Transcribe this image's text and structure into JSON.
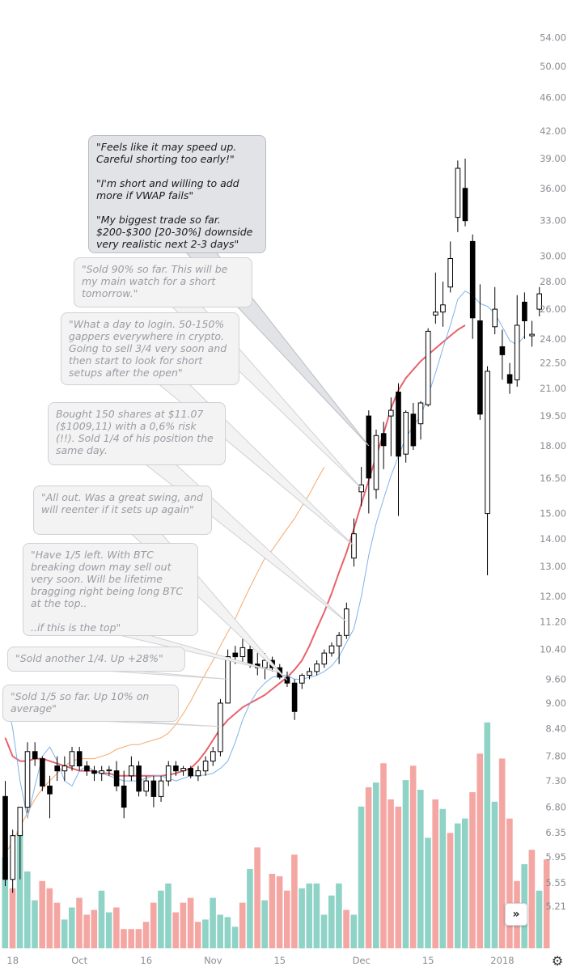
{
  "chart_data": {
    "type": "candlestick",
    "y_scale": "log",
    "ylim": [
      4.9,
      56.0
    ],
    "price_ticks": [
      "54.00",
      "50.00",
      "46.00",
      "42.00",
      "39.00",
      "36.00",
      "33.00",
      "30.00",
      "28.00",
      "26.00",
      "24.00",
      "22.50",
      "21.00",
      "19.50",
      "18.00",
      "16.50",
      "15.00",
      "14.00",
      "13.00",
      "12.00",
      "11.20",
      "10.40",
      "9.60",
      "9.00",
      "8.40",
      "7.80",
      "7.30",
      "6.80",
      "6.35",
      "5.95",
      "5.55",
      "5.21"
    ],
    "x_ticks": [
      {
        "label": "18",
        "index": 1
      },
      {
        "label": "Oct",
        "index": 10
      },
      {
        "label": "16",
        "index": 19
      },
      {
        "label": "Nov",
        "index": 28
      },
      {
        "label": "15",
        "index": 37
      },
      {
        "label": "Dec",
        "index": 48
      },
      {
        "label": "15",
        "index": 57
      },
      {
        "label": "2018",
        "index": 67
      }
    ],
    "candles": [
      {
        "o": 7.0,
        "h": 7.3,
        "l": 5.5,
        "c": 5.6
      },
      {
        "o": 5.6,
        "h": 6.4,
        "l": 5.4,
        "c": 6.3
      },
      {
        "o": 6.3,
        "h": 6.8,
        "l": 5.6,
        "c": 6.8
      },
      {
        "o": 6.8,
        "h": 8.1,
        "l": 6.7,
        "c": 7.9
      },
      {
        "o": 7.9,
        "h": 8.1,
        "l": 7.6,
        "c": 7.75
      },
      {
        "o": 7.75,
        "h": 7.8,
        "l": 7.1,
        "c": 7.2
      },
      {
        "o": 7.2,
        "h": 7.4,
        "l": 6.6,
        "c": 7.05
      },
      {
        "o": 7.6,
        "h": 7.8,
        "l": 7.3,
        "c": 7.5
      },
      {
        "o": 7.5,
        "h": 7.8,
        "l": 7.3,
        "c": 7.6
      },
      {
        "o": 7.6,
        "h": 8.0,
        "l": 7.5,
        "c": 7.9
      },
      {
        "o": 7.9,
        "h": 8.0,
        "l": 7.5,
        "c": 7.6
      },
      {
        "o": 7.6,
        "h": 7.7,
        "l": 7.4,
        "c": 7.5
      },
      {
        "o": 7.5,
        "h": 7.6,
        "l": 7.3,
        "c": 7.45
      },
      {
        "o": 7.45,
        "h": 7.6,
        "l": 7.3,
        "c": 7.5
      },
      {
        "o": 7.5,
        "h": 7.6,
        "l": 7.4,
        "c": 7.52
      },
      {
        "o": 7.5,
        "h": 7.7,
        "l": 7.1,
        "c": 7.2
      },
      {
        "o": 7.2,
        "h": 7.5,
        "l": 6.6,
        "c": 6.8
      },
      {
        "o": 7.4,
        "h": 7.8,
        "l": 7.3,
        "c": 7.6
      },
      {
        "o": 7.6,
        "h": 7.7,
        "l": 7.0,
        "c": 7.1
      },
      {
        "o": 7.1,
        "h": 7.4,
        "l": 7.0,
        "c": 7.3
      },
      {
        "o": 7.3,
        "h": 7.4,
        "l": 6.8,
        "c": 7.0
      },
      {
        "o": 7.0,
        "h": 7.4,
        "l": 6.9,
        "c": 7.3
      },
      {
        "o": 7.3,
        "h": 7.7,
        "l": 7.2,
        "c": 7.6
      },
      {
        "o": 7.6,
        "h": 7.7,
        "l": 7.4,
        "c": 7.5
      },
      {
        "o": 7.5,
        "h": 7.6,
        "l": 7.4,
        "c": 7.55
      },
      {
        "o": 7.55,
        "h": 7.6,
        "l": 7.35,
        "c": 7.4
      },
      {
        "o": 7.4,
        "h": 7.6,
        "l": 7.3,
        "c": 7.5
      },
      {
        "o": 7.5,
        "h": 7.8,
        "l": 7.4,
        "c": 7.7
      },
      {
        "o": 7.7,
        "h": 8.0,
        "l": 7.6,
        "c": 7.9
      },
      {
        "o": 7.9,
        "h": 9.1,
        "l": 7.8,
        "c": 9.0
      },
      {
        "o": 9.0,
        "h": 10.4,
        "l": 9.0,
        "c": 10.2
      },
      {
        "o": 10.3,
        "h": 10.5,
        "l": 10.0,
        "c": 10.2
      },
      {
        "o": 10.2,
        "h": 10.7,
        "l": 10.0,
        "c": 10.45
      },
      {
        "o": 10.4,
        "h": 10.6,
        "l": 9.9,
        "c": 10.0
      },
      {
        "o": 10.0,
        "h": 10.3,
        "l": 9.7,
        "c": 9.9
      },
      {
        "o": 9.9,
        "h": 10.3,
        "l": 9.6,
        "c": 10.1
      },
      {
        "o": 10.1,
        "h": 10.2,
        "l": 9.8,
        "c": 9.9
      },
      {
        "o": 9.9,
        "h": 10.0,
        "l": 9.6,
        "c": 9.65
      },
      {
        "o": 9.65,
        "h": 9.8,
        "l": 9.4,
        "c": 9.5
      },
      {
        "o": 9.5,
        "h": 9.6,
        "l": 8.6,
        "c": 8.8
      },
      {
        "o": 9.5,
        "h": 9.75,
        "l": 9.35,
        "c": 9.7
      },
      {
        "o": 9.7,
        "h": 9.9,
        "l": 9.6,
        "c": 9.8
      },
      {
        "o": 9.8,
        "h": 10.1,
        "l": 9.7,
        "c": 10.0
      },
      {
        "o": 10.0,
        "h": 10.4,
        "l": 9.9,
        "c": 10.3
      },
      {
        "o": 10.3,
        "h": 10.6,
        "l": 10.2,
        "c": 10.5
      },
      {
        "o": 10.5,
        "h": 10.9,
        "l": 10.0,
        "c": 10.8
      },
      {
        "o": 10.8,
        "h": 11.8,
        "l": 10.7,
        "c": 11.6
      },
      {
        "o": 13.3,
        "h": 14.8,
        "l": 13.0,
        "c": 14.2
      },
      {
        "o": 15.9,
        "h": 17.0,
        "l": 15.3,
        "c": 16.2
      },
      {
        "o": 19.5,
        "h": 19.8,
        "l": 15.0,
        "c": 16.5
      },
      {
        "o": 16.0,
        "h": 18.8,
        "l": 15.6,
        "c": 18.5
      },
      {
        "o": 18.6,
        "h": 19.2,
        "l": 16.9,
        "c": 18.0
      },
      {
        "o": 19.5,
        "h": 20.5,
        "l": 17.5,
        "c": 19.8
      },
      {
        "o": 20.8,
        "h": 21.3,
        "l": 14.9,
        "c": 17.5
      },
      {
        "o": 17.6,
        "h": 19.8,
        "l": 17.2,
        "c": 19.7
      },
      {
        "o": 19.6,
        "h": 20.2,
        "l": 17.8,
        "c": 18.0
      },
      {
        "o": 19.1,
        "h": 20.3,
        "l": 18.3,
        "c": 20.2
      },
      {
        "o": 20.1,
        "h": 24.7,
        "l": 20.0,
        "c": 24.5
      },
      {
        "o": 25.6,
        "h": 28.7,
        "l": 25.0,
        "c": 25.8
      },
      {
        "o": 25.8,
        "h": 28.0,
        "l": 24.8,
        "c": 26.3
      },
      {
        "o": 27.6,
        "h": 31.2,
        "l": 27.2,
        "c": 29.8
      },
      {
        "o": 33.3,
        "h": 38.8,
        "l": 32.0,
        "c": 38.0
      },
      {
        "o": 36.0,
        "h": 39.0,
        "l": 32.5,
        "c": 33.0
      },
      {
        "o": 31.2,
        "h": 31.8,
        "l": 24.0,
        "c": 25.4
      },
      {
        "o": 25.2,
        "h": 27.8,
        "l": 19.3,
        "c": 19.6
      },
      {
        "o": 15.0,
        "h": 22.3,
        "l": 12.7,
        "c": 22.0
      },
      {
        "o": 24.8,
        "h": 27.6,
        "l": 24.3,
        "c": 26.0
      },
      {
        "o": 23.5,
        "h": 24.6,
        "l": 21.5,
        "c": 23.0
      },
      {
        "o": 21.8,
        "h": 22.5,
        "l": 20.7,
        "c": 21.3
      },
      {
        "o": 21.5,
        "h": 27.0,
        "l": 21.1,
        "c": 24.9
      },
      {
        "o": 26.5,
        "h": 27.2,
        "l": 24.0,
        "c": 25.2
      },
      {
        "o": 24.2,
        "h": 25.2,
        "l": 23.5,
        "c": 24.3
      },
      {
        "o": 26.0,
        "h": 27.6,
        "l": 25.5,
        "c": 27.1
      }
    ],
    "volume": {
      "max": 100,
      "values": [
        38,
        25,
        49,
        32,
        20,
        28,
        25,
        19,
        12,
        17,
        21,
        14,
        16,
        24,
        15,
        17,
        8,
        8,
        8,
        11,
        19,
        24,
        27,
        15,
        19,
        21,
        11,
        12,
        21,
        14,
        13,
        9,
        19,
        33,
        42,
        20,
        31,
        30,
        24,
        39,
        25,
        27,
        27,
        14,
        22,
        27,
        16,
        14,
        59,
        67,
        69,
        77,
        62,
        59,
        70,
        76,
        66,
        46,
        62,
        58,
        48,
        52,
        54,
        65,
        81,
        94,
        61,
        79,
        54,
        28,
        35,
        41,
        24,
        37
      ],
      "up": [
        true,
        false,
        true,
        true,
        true,
        false,
        false,
        false,
        true,
        true,
        false,
        false,
        false,
        true,
        true,
        false,
        false,
        false,
        false,
        false,
        false,
        true,
        true,
        false,
        false,
        false,
        false,
        true,
        true,
        true,
        true,
        true,
        false,
        true,
        false,
        true,
        false,
        false,
        false,
        false,
        true,
        true,
        true,
        true,
        true,
        true,
        false,
        true,
        true,
        false,
        true,
        false,
        false,
        false,
        true,
        false,
        true,
        true,
        false,
        true,
        false,
        true,
        true,
        false,
        false,
        true,
        true,
        false,
        false,
        false,
        true,
        false,
        true
      ]
    },
    "ema_fast": [
      9.3,
      8.4,
      7.3,
      6.6,
      7.2,
      7.8,
      8.0,
      7.7,
      7.3,
      7.2,
      7.5,
      7.6,
      7.5,
      7.45,
      7.4,
      7.35,
      7.3,
      7.3,
      7.3,
      7.35,
      7.4,
      7.4,
      7.35,
      7.3,
      7.35,
      7.4,
      7.4,
      7.42,
      7.45,
      7.55,
      7.7,
      8.1,
      8.6,
      9.0,
      9.3,
      9.5,
      9.65,
      9.7,
      9.7,
      9.6,
      9.6,
      9.65,
      9.7,
      9.8,
      9.95,
      10.2,
      10.6,
      11.0,
      12.0,
      13.4,
      14.6,
      15.6,
      16.6,
      17.5,
      18.4,
      19.0,
      19.5,
      20.6,
      21.9,
      23.4,
      24.9,
      26.7,
      27.3,
      27.0,
      26.4,
      26.2,
      25.7,
      24.8,
      23.9,
      23.6,
      24.2
    ],
    "ema_mid": [
      8.2,
      7.8,
      7.7,
      7.7,
      7.75,
      7.75,
      7.7,
      7.65,
      7.6,
      7.55,
      7.5,
      7.5,
      7.5,
      7.45,
      7.45,
      7.4,
      7.4,
      7.4,
      7.4,
      7.4,
      7.4,
      7.4,
      7.42,
      7.45,
      7.5,
      7.55,
      7.7,
      7.9,
      8.15,
      8.4,
      8.6,
      8.75,
      8.9,
      9.0,
      9.1,
      9.2,
      9.35,
      9.5,
      9.65,
      9.85,
      10.1,
      10.5,
      11.0,
      11.5,
      12.1,
      12.8,
      13.5,
      14.4,
      15.4,
      16.4,
      17.5,
      18.6,
      19.9,
      20.9,
      21.6,
      22.1,
      22.6,
      23.0,
      23.4,
      23.8,
      24.2,
      24.6,
      24.9
    ],
    "ema_slow": [
      6.0,
      6.2,
      6.45,
      6.7,
      6.95,
      7.15,
      7.3,
      7.45,
      7.6,
      7.7,
      7.75,
      7.75,
      7.75,
      7.8,
      7.85,
      7.95,
      8.0,
      8.05,
      8.05,
      8.1,
      8.15,
      8.2,
      8.3,
      8.5,
      8.75,
      9.05,
      9.4,
      9.75,
      10.1,
      10.5,
      10.9,
      11.3,
      11.8,
      12.3,
      12.8,
      13.3,
      13.6,
      14.0,
      14.4,
      14.8,
      15.3,
      15.8,
      16.4,
      17.0
    ],
    "annotations": [
      {
        "text": "\"Sold 1/5 so far. Up 10% on average\"",
        "target_index": 29,
        "style": "light"
      },
      {
        "text": "\"Sold another 1/4. Up +28%\"",
        "target_index": 30,
        "style": "light"
      },
      {
        "text": "\"Have 1/5 left. With  BTC breaking down may sell out very soon. Will be lifetime bragging right being long BTC at the top..\n\n..if this is the top\"",
        "target_index": 37,
        "style": "light"
      },
      {
        "text": "\"All out. Was a great swing, and will reenter if it sets up again\"",
        "target_index": 38,
        "style": "light"
      },
      {
        "text": "Bought 150 shares at $11.07 ($1009,11) with a 0,6% risk (!!). Sold 1/4 of his position the same day.",
        "target_index": 46,
        "style": "light"
      },
      {
        "text": "\"What a day to login. 50-150% gappers everywhere in crypto. Going to sell 3/4  very  soon and then start to look for short setups after the open\"",
        "target_index": 47,
        "style": "light"
      },
      {
        "text": "\"Sold 90% so far. This will be my main watch for a short tomorrow.\"",
        "target_index": 48,
        "style": "light"
      },
      {
        "text": "\"Feels like it may speed up. Careful shorting too early!\"\n\n\"I'm short and willing to add more if VWAP fails\"\n\n\"My biggest trade so far. $200-$300 [20-30%] downside very realistic next 2-3 days\"",
        "target_index": 49,
        "style": "dark"
      }
    ]
  },
  "colors": {
    "up_candle": "#ffffff",
    "down_candle": "#000000",
    "volume_up": "#8fd3c7",
    "volume_down": "#f4a6a3",
    "ema_fast": "#7fb3ea",
    "ema_mid": "#e8636b",
    "ema_slow": "#f5a86a",
    "axis_text": "#8a8d93"
  },
  "icons": {
    "scroll_button": "double-chevron-right-icon",
    "settings": "gear-icon"
  },
  "controls": {
    "scroll_glyph": "»",
    "settings_glyph": "⚙"
  }
}
